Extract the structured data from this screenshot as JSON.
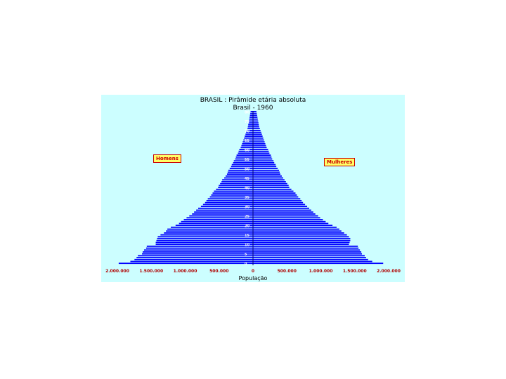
{
  "chart_data": {
    "type": "bar",
    "title": "BRASIL : Pirâmide etária absoluta",
    "subtitle": "Brasil - 1960",
    "xlabel": "População",
    "left_series_label": "Homens",
    "right_series_label": "Mulheres",
    "xlim": [
      -2000000,
      2000000
    ],
    "x_ticks": [
      -2000000,
      -1500000,
      -1000000,
      -500000,
      0,
      500000,
      1000000,
      1500000,
      2000000
    ],
    "x_tick_labels": [
      "2.000.000",
      "1.500.000",
      "1.000.000",
      "500.000",
      "0",
      "500.000",
      "1.000.000",
      "1.500.000",
      "2.000.000"
    ],
    "y_tick_labels": [
      "0",
      "5",
      "10",
      "15",
      "20",
      "25",
      "30",
      "35",
      "40",
      "45",
      "50",
      "55",
      "60",
      "65",
      "70",
      "75",
      "80"
    ],
    "y_tick_ages": [
      0,
      5,
      10,
      15,
      20,
      25,
      30,
      35,
      40,
      45,
      50,
      55,
      60,
      65,
      70,
      75,
      80
    ],
    "ages": [
      0,
      1,
      2,
      3,
      4,
      5,
      6,
      7,
      8,
      9,
      10,
      11,
      12,
      13,
      14,
      15,
      16,
      17,
      18,
      19,
      20,
      21,
      22,
      23,
      24,
      25,
      26,
      27,
      28,
      29,
      30,
      31,
      32,
      33,
      34,
      35,
      36,
      37,
      38,
      39,
      40,
      41,
      42,
      43,
      44,
      45,
      46,
      47,
      48,
      49,
      50,
      51,
      52,
      53,
      54,
      55,
      56,
      57,
      58,
      59,
      60,
      61,
      62,
      63,
      64,
      65,
      66,
      67,
      68,
      69,
      70,
      71,
      72,
      73,
      74,
      75,
      76,
      77,
      78,
      79,
      80
    ],
    "series": [
      {
        "name": "Homens",
        "values": [
          1960000,
          1790000,
          1730000,
          1700000,
          1680000,
          1620000,
          1610000,
          1590000,
          1560000,
          1550000,
          1420000,
          1420000,
          1410000,
          1400000,
          1390000,
          1350000,
          1300000,
          1270000,
          1250000,
          1200000,
          1130000,
          1080000,
          1050000,
          1010000,
          970000,
          930000,
          890000,
          860000,
          830000,
          800000,
          760000,
          730000,
          700000,
          680000,
          660000,
          630000,
          610000,
          590000,
          570000,
          540000,
          510000,
          500000,
          480000,
          460000,
          450000,
          420000,
          400000,
          380000,
          370000,
          360000,
          340000,
          320000,
          310000,
          290000,
          280000,
          260000,
          250000,
          240000,
          220000,
          210000,
          200000,
          180000,
          170000,
          160000,
          150000,
          140000,
          130000,
          120000,
          110000,
          100000,
          90000,
          80000,
          75000,
          70000,
          65000,
          60000,
          55000,
          50000,
          45000,
          40000,
          35000
        ]
      },
      {
        "name": "Mulheres",
        "values": [
          1900000,
          1740000,
          1680000,
          1650000,
          1630000,
          1590000,
          1580000,
          1560000,
          1540000,
          1530000,
          1400000,
          1410000,
          1420000,
          1420000,
          1400000,
          1370000,
          1330000,
          1290000,
          1260000,
          1220000,
          1160000,
          1100000,
          1060000,
          1020000,
          980000,
          950000,
          910000,
          880000,
          850000,
          820000,
          790000,
          760000,
          730000,
          710000,
          690000,
          660000,
          640000,
          620000,
          590000,
          560000,
          530000,
          520000,
          500000,
          480000,
          460000,
          440000,
          420000,
          400000,
          390000,
          380000,
          360000,
          340000,
          330000,
          310000,
          300000,
          280000,
          270000,
          260000,
          240000,
          230000,
          220000,
          200000,
          190000,
          180000,
          170000,
          160000,
          150000,
          140000,
          130000,
          120000,
          110000,
          100000,
          90000,
          85000,
          80000,
          75000,
          70000,
          65000,
          60000,
          55000,
          50000
        ]
      }
    ],
    "bar_color": "#0000ff",
    "background_color": "#ccfeff",
    "tick_label_color": "#b00000"
  }
}
